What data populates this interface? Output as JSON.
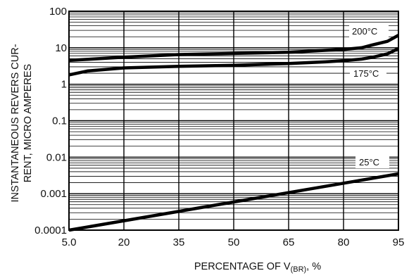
{
  "chart_data": {
    "type": "line",
    "xlabel_main": "PERCENTAGE OF V",
    "xlabel_sub": "(BR)",
    "xlabel_tail": ", %",
    "ylabel_line1": "INSTANTANEOUS REVERS CUR-",
    "ylabel_line2": "RENT, MICRO AMPERES",
    "x_scale": "linear",
    "y_scale": "log",
    "xlim": [
      5,
      95
    ],
    "ylim": [
      0.0001,
      100
    ],
    "x_ticks": [
      5,
      20,
      35,
      50,
      65,
      80,
      95
    ],
    "x_tick_labels": [
      "5.0",
      "20",
      "35",
      "50",
      "65",
      "80",
      "95"
    ],
    "y_ticks": [
      0.0001,
      0.001,
      0.01,
      0.1,
      1,
      10,
      100
    ],
    "y_tick_labels": [
      "0.0001",
      "0.001",
      "0.01",
      "0.1",
      "1",
      "10",
      "100"
    ],
    "grid": true,
    "series": [
      {
        "name": "200°C",
        "x": [
          5,
          20,
          35,
          50,
          65,
          75,
          80,
          85,
          88,
          92,
          95
        ],
        "y": [
          4.5,
          5.5,
          6.5,
          7,
          7.5,
          8.5,
          9,
          10,
          12,
          15,
          22
        ]
      },
      {
        "name": "175°C",
        "x": [
          5,
          10,
          20,
          35,
          50,
          65,
          75,
          80,
          85,
          88,
          92,
          95
        ],
        "y": [
          1.8,
          2.3,
          2.8,
          3.1,
          3.3,
          3.7,
          4.1,
          4.4,
          4.9,
          5.5,
          6.8,
          9.5
        ]
      },
      {
        "name": "25°C",
        "x": [
          5,
          95
        ],
        "y": [
          0.0001,
          0.0035
        ]
      }
    ]
  }
}
